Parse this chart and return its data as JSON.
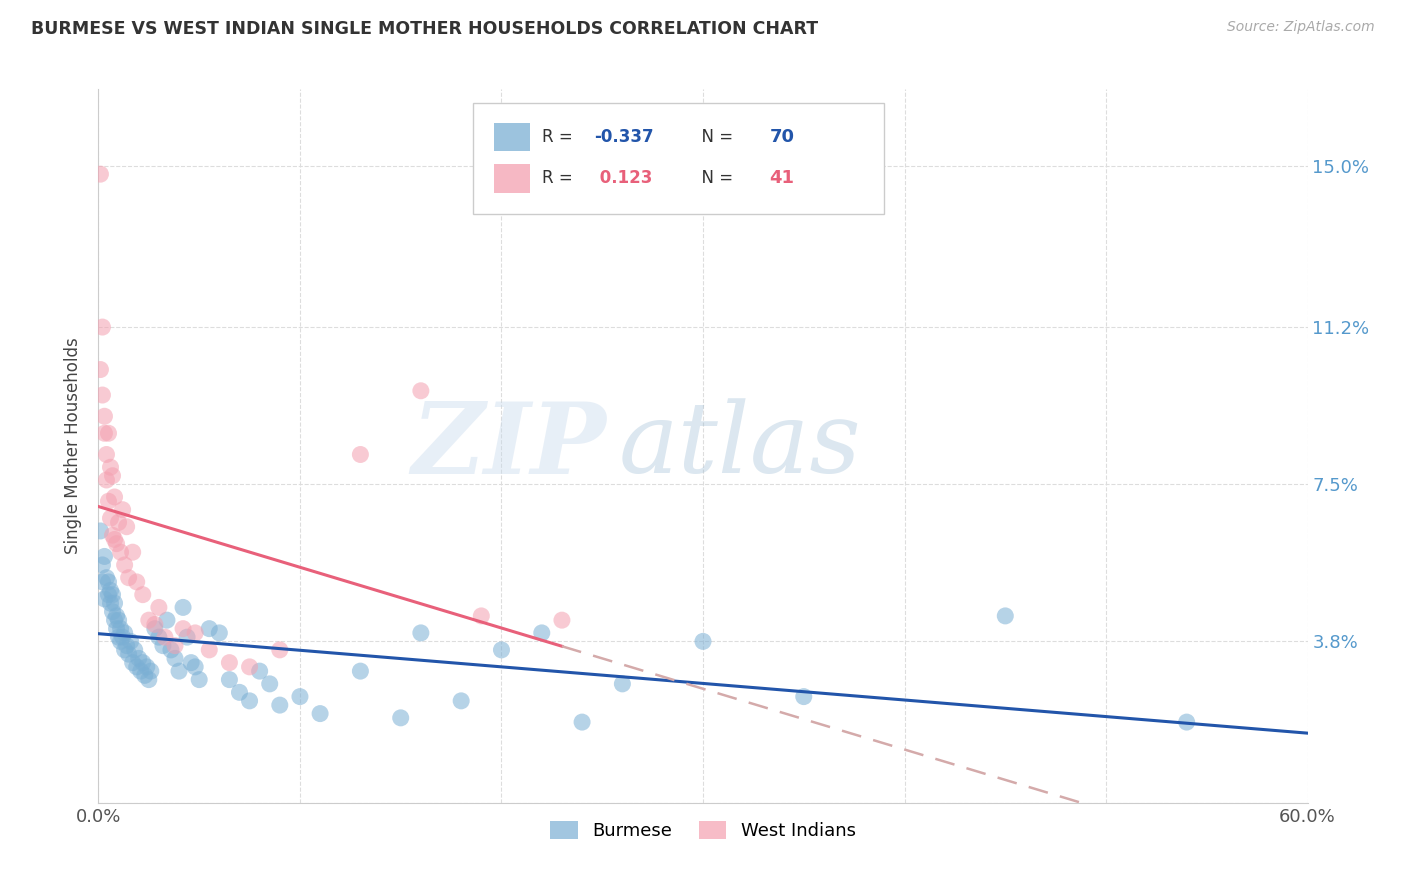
{
  "title": "BURMESE VS WEST INDIAN SINGLE MOTHER HOUSEHOLDS CORRELATION CHART",
  "source": "Source: ZipAtlas.com",
  "ylabel": "Single Mother Households",
  "x_min": 0.0,
  "x_max": 0.6,
  "y_min": 0.0,
  "y_max": 0.168,
  "y_ticks": [
    0.0,
    0.038,
    0.075,
    0.112,
    0.15
  ],
  "y_tick_labels": [
    "",
    "3.8%",
    "7.5%",
    "11.2%",
    "15.0%"
  ],
  "x_ticks": [
    0.0,
    0.1,
    0.2,
    0.3,
    0.4,
    0.5,
    0.6
  ],
  "x_tick_labels": [
    "0.0%",
    "",
    "",
    "",
    "",
    "",
    "60.0%"
  ],
  "burmese_color": "#7BAFD4",
  "west_indian_color": "#F4A0B0",
  "burmese_line_color": "#2255AA",
  "west_indian_line_color": "#E8607A",
  "west_indian_dash_color": "#D4AAAA",
  "burmese_label": "Burmese",
  "west_indian_label": "West Indians",
  "burmese_R": -0.337,
  "burmese_N": 70,
  "west_indian_R": 0.123,
  "west_indian_N": 41,
  "watermark_zip": "ZIP",
  "watermark_atlas": "atlas",
  "right_tick_color": "#5599CC",
  "burmese_x": [
    0.001,
    0.002,
    0.002,
    0.003,
    0.003,
    0.004,
    0.005,
    0.005,
    0.006,
    0.006,
    0.007,
    0.007,
    0.008,
    0.008,
    0.009,
    0.009,
    0.01,
    0.01,
    0.011,
    0.011,
    0.012,
    0.013,
    0.013,
    0.014,
    0.015,
    0.016,
    0.017,
    0.018,
    0.019,
    0.02,
    0.021,
    0.022,
    0.023,
    0.024,
    0.025,
    0.026,
    0.028,
    0.03,
    0.032,
    0.034,
    0.036,
    0.038,
    0.04,
    0.042,
    0.044,
    0.046,
    0.048,
    0.05,
    0.055,
    0.06,
    0.065,
    0.07,
    0.075,
    0.08,
    0.085,
    0.09,
    0.1,
    0.11,
    0.13,
    0.15,
    0.16,
    0.18,
    0.2,
    0.22,
    0.24,
    0.26,
    0.3,
    0.35,
    0.45,
    0.54
  ],
  "burmese_y": [
    0.064,
    0.056,
    0.052,
    0.058,
    0.048,
    0.053,
    0.049,
    0.052,
    0.047,
    0.05,
    0.045,
    0.049,
    0.043,
    0.047,
    0.041,
    0.044,
    0.039,
    0.043,
    0.038,
    0.041,
    0.039,
    0.036,
    0.04,
    0.037,
    0.035,
    0.038,
    0.033,
    0.036,
    0.032,
    0.034,
    0.031,
    0.033,
    0.03,
    0.032,
    0.029,
    0.031,
    0.041,
    0.039,
    0.037,
    0.043,
    0.036,
    0.034,
    0.031,
    0.046,
    0.039,
    0.033,
    0.032,
    0.029,
    0.041,
    0.04,
    0.029,
    0.026,
    0.024,
    0.031,
    0.028,
    0.023,
    0.025,
    0.021,
    0.031,
    0.02,
    0.04,
    0.024,
    0.036,
    0.04,
    0.019,
    0.028,
    0.038,
    0.025,
    0.044,
    0.019
  ],
  "west_indian_x": [
    0.001,
    0.001,
    0.002,
    0.002,
    0.003,
    0.003,
    0.004,
    0.004,
    0.005,
    0.005,
    0.006,
    0.006,
    0.007,
    0.007,
    0.008,
    0.008,
    0.009,
    0.01,
    0.011,
    0.012,
    0.013,
    0.014,
    0.015,
    0.017,
    0.019,
    0.022,
    0.025,
    0.028,
    0.03,
    0.033,
    0.038,
    0.042,
    0.048,
    0.055,
    0.065,
    0.075,
    0.09,
    0.13,
    0.16,
    0.19,
    0.23
  ],
  "west_indian_y": [
    0.148,
    0.102,
    0.096,
    0.112,
    0.087,
    0.091,
    0.082,
    0.076,
    0.087,
    0.071,
    0.079,
    0.067,
    0.077,
    0.063,
    0.072,
    0.062,
    0.061,
    0.066,
    0.059,
    0.069,
    0.056,
    0.065,
    0.053,
    0.059,
    0.052,
    0.049,
    0.043,
    0.042,
    0.046,
    0.039,
    0.037,
    0.041,
    0.04,
    0.036,
    0.033,
    0.032,
    0.036,
    0.082,
    0.097,
    0.044,
    0.043
  ]
}
